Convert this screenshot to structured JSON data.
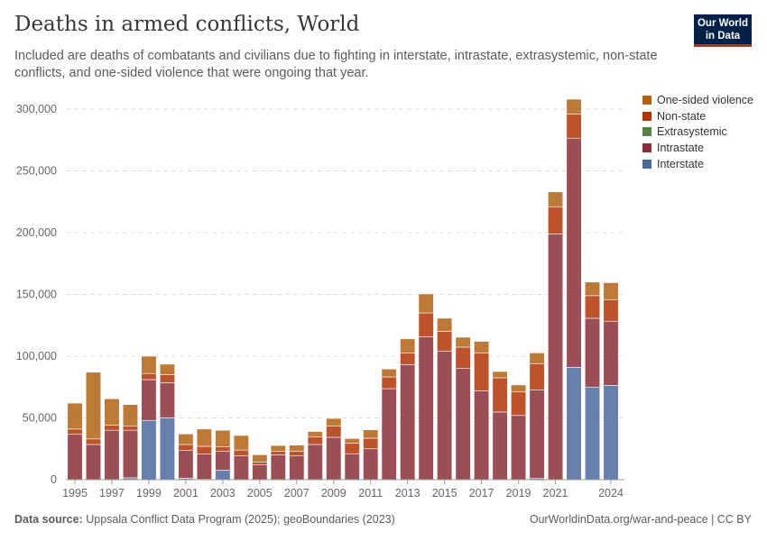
{
  "header": {
    "title": "Deaths in armed conflicts, World",
    "subtitle": "Included are deaths of combatants and civilians due to fighting in interstate, intrastate, extrasystemic, non-state conflicts, and one-sided violence that were ongoing that year.",
    "logo": "Our World in Data"
  },
  "footer": {
    "source_label": "Data source:",
    "source": "Uppsala Conflict Data Program (2025); geoBoundaries (2023)",
    "link": "OurWorldinData.org/war-and-peace | CC BY"
  },
  "chart_data": {
    "type": "bar",
    "stacked": true,
    "title": "Deaths in armed conflicts, World",
    "xlabel": "",
    "ylabel": "",
    "ylim": [
      0,
      300000
    ],
    "yticks": [
      0,
      50000,
      100000,
      150000,
      200000,
      250000,
      300000
    ],
    "ytick_labels": [
      "0",
      "50,000",
      "100,000",
      "150,000",
      "200,000",
      "250,000",
      "300,000"
    ],
    "xtick_labels": [
      "1995",
      "1997",
      "1999",
      "2001",
      "2003",
      "2005",
      "2007",
      "2009",
      "2011",
      "2013",
      "2015",
      "2017",
      "2019",
      "2021",
      "2024"
    ],
    "grid": "horizontal dashed",
    "legend_position": "right",
    "categories": [
      1995,
      1996,
      1997,
      1998,
      1999,
      2000,
      2001,
      2002,
      2003,
      2004,
      2005,
      2006,
      2007,
      2008,
      2009,
      2010,
      2011,
      2012,
      2013,
      2014,
      2015,
      2016,
      2017,
      2018,
      2019,
      2020,
      2021,
      2022,
      2023,
      2024
    ],
    "series": [
      {
        "name": "Interstate",
        "color": "#4C6A9C",
        "values": [
          0,
          0,
          0,
          1500,
          48000,
          50000,
          1200,
          300,
          7800,
          0,
          0,
          0,
          0,
          0,
          0,
          0,
          0,
          0,
          0,
          0,
          0,
          0,
          0,
          0,
          0,
          1000,
          0,
          91000,
          75000,
          76400
        ]
      },
      {
        "name": "Intrastate",
        "color": "#883039",
        "values": [
          36700,
          28500,
          40000,
          38500,
          33000,
          28600,
          22400,
          20400,
          15100,
          19500,
          12200,
          20000,
          19200,
          28500,
          34300,
          21000,
          25000,
          73700,
          93200,
          115600,
          104000,
          90000,
          72000,
          54800,
          52000,
          71800,
          199000,
          185500,
          55700,
          51900
        ]
      },
      {
        "name": "Extrasystemic",
        "color": "#578145",
        "values": [
          0,
          0,
          0,
          0,
          0,
          0,
          0,
          0,
          0,
          0,
          0,
          0,
          0,
          0,
          0,
          0,
          0,
          0,
          0,
          0,
          0,
          0,
          0,
          0,
          0,
          0,
          0,
          0,
          0,
          0
        ]
      },
      {
        "name": "Non-state",
        "color": "#B13507",
        "values": [
          4300,
          4500,
          4000,
          3600,
          5000,
          6400,
          4900,
          6300,
          3600,
          4500,
          2200,
          2900,
          3800,
          6000,
          9000,
          8400,
          8600,
          9500,
          9200,
          19400,
          16000,
          17300,
          30400,
          27700,
          19000,
          20900,
          22000,
          19500,
          18300,
          17500
        ]
      },
      {
        "name": "One-sided violence",
        "color": "#B16214",
        "values": [
          21000,
          54000,
          21500,
          17200,
          14000,
          8500,
          8500,
          14000,
          13500,
          11800,
          5800,
          4800,
          5000,
          4500,
          6300,
          3900,
          6800,
          6400,
          11600,
          15400,
          10700,
          8000,
          9600,
          5100,
          5700,
          9000,
          12000,
          12000,
          11000,
          13700
        ]
      }
    ]
  }
}
